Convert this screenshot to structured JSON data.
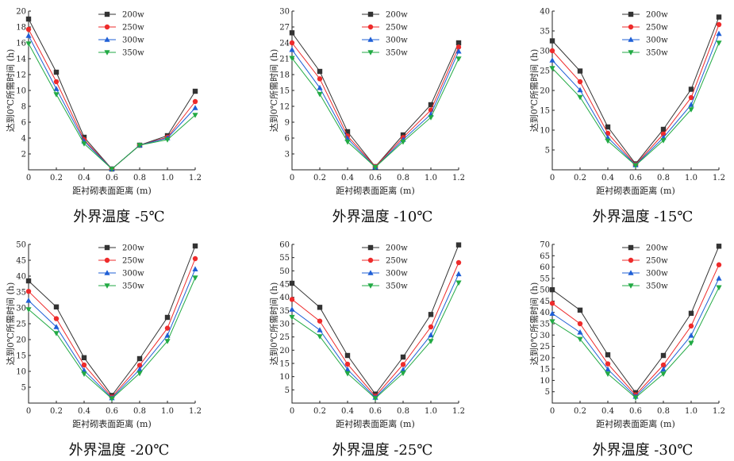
{
  "chart_data": [
    {
      "type": "line",
      "caption": "外界温度 -5℃",
      "xlabel": "距衬砌表面距离 (m)",
      "ylabel": "达到0℃所需时间 (h)",
      "x": [
        0,
        0.2,
        0.4,
        0.6,
        0.8,
        1.0,
        1.2
      ],
      "xticks": [
        "0",
        "0.2",
        "0.4",
        "0.6",
        "0.8",
        "1.0",
        "1.2"
      ],
      "xlim": [
        0,
        1.2
      ],
      "ylim": [
        0,
        20
      ],
      "yticks": [
        "2",
        "4",
        "6",
        "8",
        "10",
        "12",
        "14",
        "16",
        "18",
        "20"
      ],
      "legend_position": "top-right",
      "series": [
        {
          "name": "200w",
          "values": [
            19.0,
            12.3,
            4.1,
            0.1,
            3.1,
            4.3,
            9.9
          ]
        },
        {
          "name": "250w",
          "values": [
            17.7,
            11.1,
            3.8,
            0.1,
            3.1,
            4.1,
            8.6
          ]
        },
        {
          "name": "300w",
          "values": [
            16.9,
            10.2,
            3.6,
            0.1,
            3.1,
            4.0,
            7.8
          ]
        },
        {
          "name": "350w",
          "values": [
            15.9,
            9.5,
            3.3,
            0.1,
            3.1,
            3.8,
            6.9
          ]
        }
      ]
    },
    {
      "type": "line",
      "caption": "外界温度 -10℃",
      "xlabel": "距衬砌表面距离 (m)",
      "ylabel": "达到0℃所需时间 (h)",
      "x": [
        0,
        0.2,
        0.4,
        0.6,
        0.8,
        1.0,
        1.2
      ],
      "xticks": [
        "0",
        "0.2",
        "0.4",
        "0.6",
        "0.8",
        "1.0",
        "1.2"
      ],
      "xlim": [
        0,
        1.2
      ],
      "ylim": [
        0,
        30
      ],
      "yticks": [
        "3",
        "6",
        "9",
        "12",
        "15",
        "18",
        "21",
        "24",
        "27",
        "30"
      ],
      "legend_position": "top-right",
      "series": [
        {
          "name": "200w",
          "values": [
            25.9,
            18.6,
            7.2,
            0.6,
            6.6,
            12.3,
            24.0
          ]
        },
        {
          "name": "250w",
          "values": [
            24.0,
            17.2,
            6.4,
            0.6,
            6.1,
            11.3,
            23.2
          ]
        },
        {
          "name": "300w",
          "values": [
            22.7,
            15.5,
            5.9,
            0.5,
            5.7,
            10.5,
            22.4
          ]
        },
        {
          "name": "350w",
          "values": [
            21.1,
            14.3,
            5.3,
            0.5,
            5.3,
            9.9,
            21.0
          ]
        }
      ]
    },
    {
      "type": "line",
      "caption": "外界温度 -15℃",
      "xlabel": "距衬砌表面距离 (m)",
      "ylabel": "达到0℃所需时间 (h)",
      "x": [
        0,
        0.2,
        0.4,
        0.6,
        0.8,
        1.0,
        1.2
      ],
      "xticks": [
        "0",
        "0.2",
        "0.4",
        "0.6",
        "0.8",
        "1.0",
        "1.2"
      ],
      "xlim": [
        0,
        1.2
      ],
      "ylim": [
        0,
        40
      ],
      "yticks": [
        "5",
        "10",
        "15",
        "20",
        "25",
        "30",
        "35",
        "40"
      ],
      "legend_position": "top-right",
      "series": [
        {
          "name": "200w",
          "values": [
            32.5,
            24.9,
            10.8,
            1.5,
            10.2,
            20.3,
            38.5
          ]
        },
        {
          "name": "250w",
          "values": [
            30.0,
            22.2,
            9.2,
            1.3,
            9.0,
            18.2,
            36.6
          ]
        },
        {
          "name": "300w",
          "values": [
            27.6,
            20.1,
            8.1,
            1.2,
            8.1,
            16.4,
            34.3
          ]
        },
        {
          "name": "350w",
          "values": [
            25.6,
            18.3,
            7.3,
            1.1,
            7.4,
            15.2,
            32.0
          ]
        }
      ]
    },
    {
      "type": "line",
      "caption": "外界温度 -20℃",
      "xlabel": "距衬砌表面距离 (m)",
      "ylabel": "达到0℃所需时间 (h)",
      "x": [
        0,
        0.2,
        0.4,
        0.6,
        0.8,
        1.0,
        1.2
      ],
      "xticks": [
        "0",
        "0.2",
        "0.4",
        "0.6",
        "0.8",
        "1.0",
        "1.2"
      ],
      "xlim": [
        0,
        1.2
      ],
      "ylim": [
        0,
        50
      ],
      "yticks": [
        "5",
        "10",
        "15",
        "20",
        "25",
        "30",
        "35",
        "40",
        "45",
        "50"
      ],
      "legend_position": "top-right",
      "series": [
        {
          "name": "200w",
          "values": [
            38.5,
            30.3,
            14.3,
            2.4,
            14.0,
            27.0,
            49.5
          ]
        },
        {
          "name": "250w",
          "values": [
            35.2,
            26.6,
            12.0,
            1.9,
            11.9,
            23.6,
            45.5
          ]
        },
        {
          "name": "300w",
          "values": [
            32.3,
            24.0,
            10.3,
            1.6,
            10.6,
            21.3,
            42.2
          ]
        },
        {
          "name": "350w",
          "values": [
            29.5,
            22.0,
            9.2,
            1.4,
            9.4,
            19.5,
            39.5
          ]
        }
      ]
    },
    {
      "type": "line",
      "caption": "外界温度 -25℃",
      "xlabel": "距衬砌表面距离 (m)",
      "ylabel": "达到0℃所需时间 (h)",
      "x": [
        0,
        0.2,
        0.4,
        0.6,
        0.8,
        1.0,
        1.2
      ],
      "xticks": [
        "0",
        "0.2",
        "0.4",
        "0.6",
        "0.8",
        "1.0",
        "1.2"
      ],
      "xlim": [
        0,
        1.2
      ],
      "ylim": [
        0,
        60
      ],
      "yticks": [
        "5",
        "10",
        "15",
        "20",
        "25",
        "30",
        "35",
        "40",
        "45",
        "50",
        "55",
        "60"
      ],
      "legend_position": "top-right",
      "series": [
        {
          "name": "200w",
          "values": [
            45.3,
            36.2,
            18.0,
            3.4,
            17.4,
            33.5,
            59.8
          ]
        },
        {
          "name": "250w",
          "values": [
            39.2,
            31.0,
            14.7,
            2.6,
            14.6,
            28.8,
            53.1
          ]
        },
        {
          "name": "300w",
          "values": [
            35.4,
            27.6,
            12.7,
            2.1,
            12.6,
            25.7,
            48.8
          ]
        },
        {
          "name": "350w",
          "values": [
            32.5,
            25.2,
            11.2,
            1.8,
            11.3,
            23.4,
            45.5
          ]
        }
      ]
    },
    {
      "type": "line",
      "caption": "外界温度 -30℃",
      "xlabel": "距衬砌表面距离 (m)",
      "ylabel": "达到0℃所需时间 (h)",
      "x": [
        0,
        0.2,
        0.4,
        0.6,
        0.8,
        1.0,
        1.2
      ],
      "xticks": [
        "0",
        "0.2",
        "0.4",
        "0.6",
        "0.8",
        "1.0",
        "1.2"
      ],
      "xlim": [
        0,
        1.2
      ],
      "ylim": [
        0,
        70
      ],
      "yticks": [
        "5",
        "10",
        "15",
        "20",
        "25",
        "30",
        "35",
        "40",
        "45",
        "50",
        "55",
        "60",
        "65",
        "70"
      ],
      "legend_position": "top-right",
      "series": [
        {
          "name": "200w",
          "values": [
            50.0,
            41.0,
            21.3,
            4.6,
            21.0,
            39.6,
            69.2
          ]
        },
        {
          "name": "250w",
          "values": [
            44.0,
            35.0,
            17.3,
            3.6,
            16.8,
            34.0,
            61.0
          ]
        },
        {
          "name": "300w",
          "values": [
            39.5,
            31.2,
            14.9,
            2.9,
            14.9,
            29.8,
            55.0
          ]
        },
        {
          "name": "350w",
          "values": [
            36.0,
            28.2,
            12.9,
            2.4,
            12.9,
            26.5,
            51.0
          ]
        }
      ]
    }
  ],
  "series_style": [
    {
      "color": "#333333",
      "marker": "square"
    },
    {
      "color": "#ee2b2b",
      "marker": "circle"
    },
    {
      "color": "#1f5fd6",
      "marker": "triangle-up"
    },
    {
      "color": "#22aa44",
      "marker": "triangle-down"
    }
  ]
}
